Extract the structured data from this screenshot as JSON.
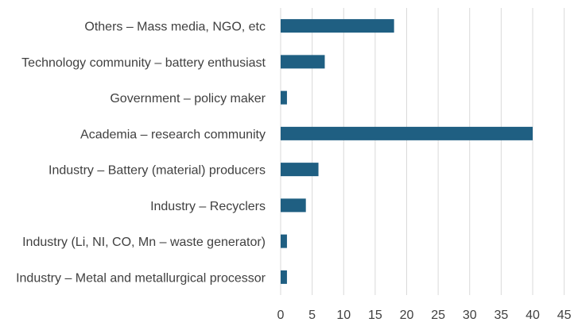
{
  "colors": {
    "bar": "#1f5f82",
    "grid": "#d9d9d9",
    "text": "#404040",
    "background": "#ffffff"
  },
  "chart_data": {
    "type": "bar",
    "orientation": "horizontal",
    "title": "",
    "xlabel": "",
    "ylabel": "",
    "xlim": [
      0,
      45
    ],
    "x_ticks": [
      0,
      5,
      10,
      15,
      20,
      25,
      30,
      35,
      40,
      45
    ],
    "grid": true,
    "categories": [
      "Others – Mass media, NGO, etc",
      "Technology community – battery enthusiast",
      "Government – policy maker",
      "Academia – research community ",
      "Industry – Battery (material) producers",
      "Industry – Recyclers",
      "Industry (Li, NI, CO, Mn – waste generator)",
      "Industry – Metal and metallurgical processor"
    ],
    "values": [
      18,
      7,
      1,
      40,
      6,
      4,
      1,
      1
    ]
  }
}
